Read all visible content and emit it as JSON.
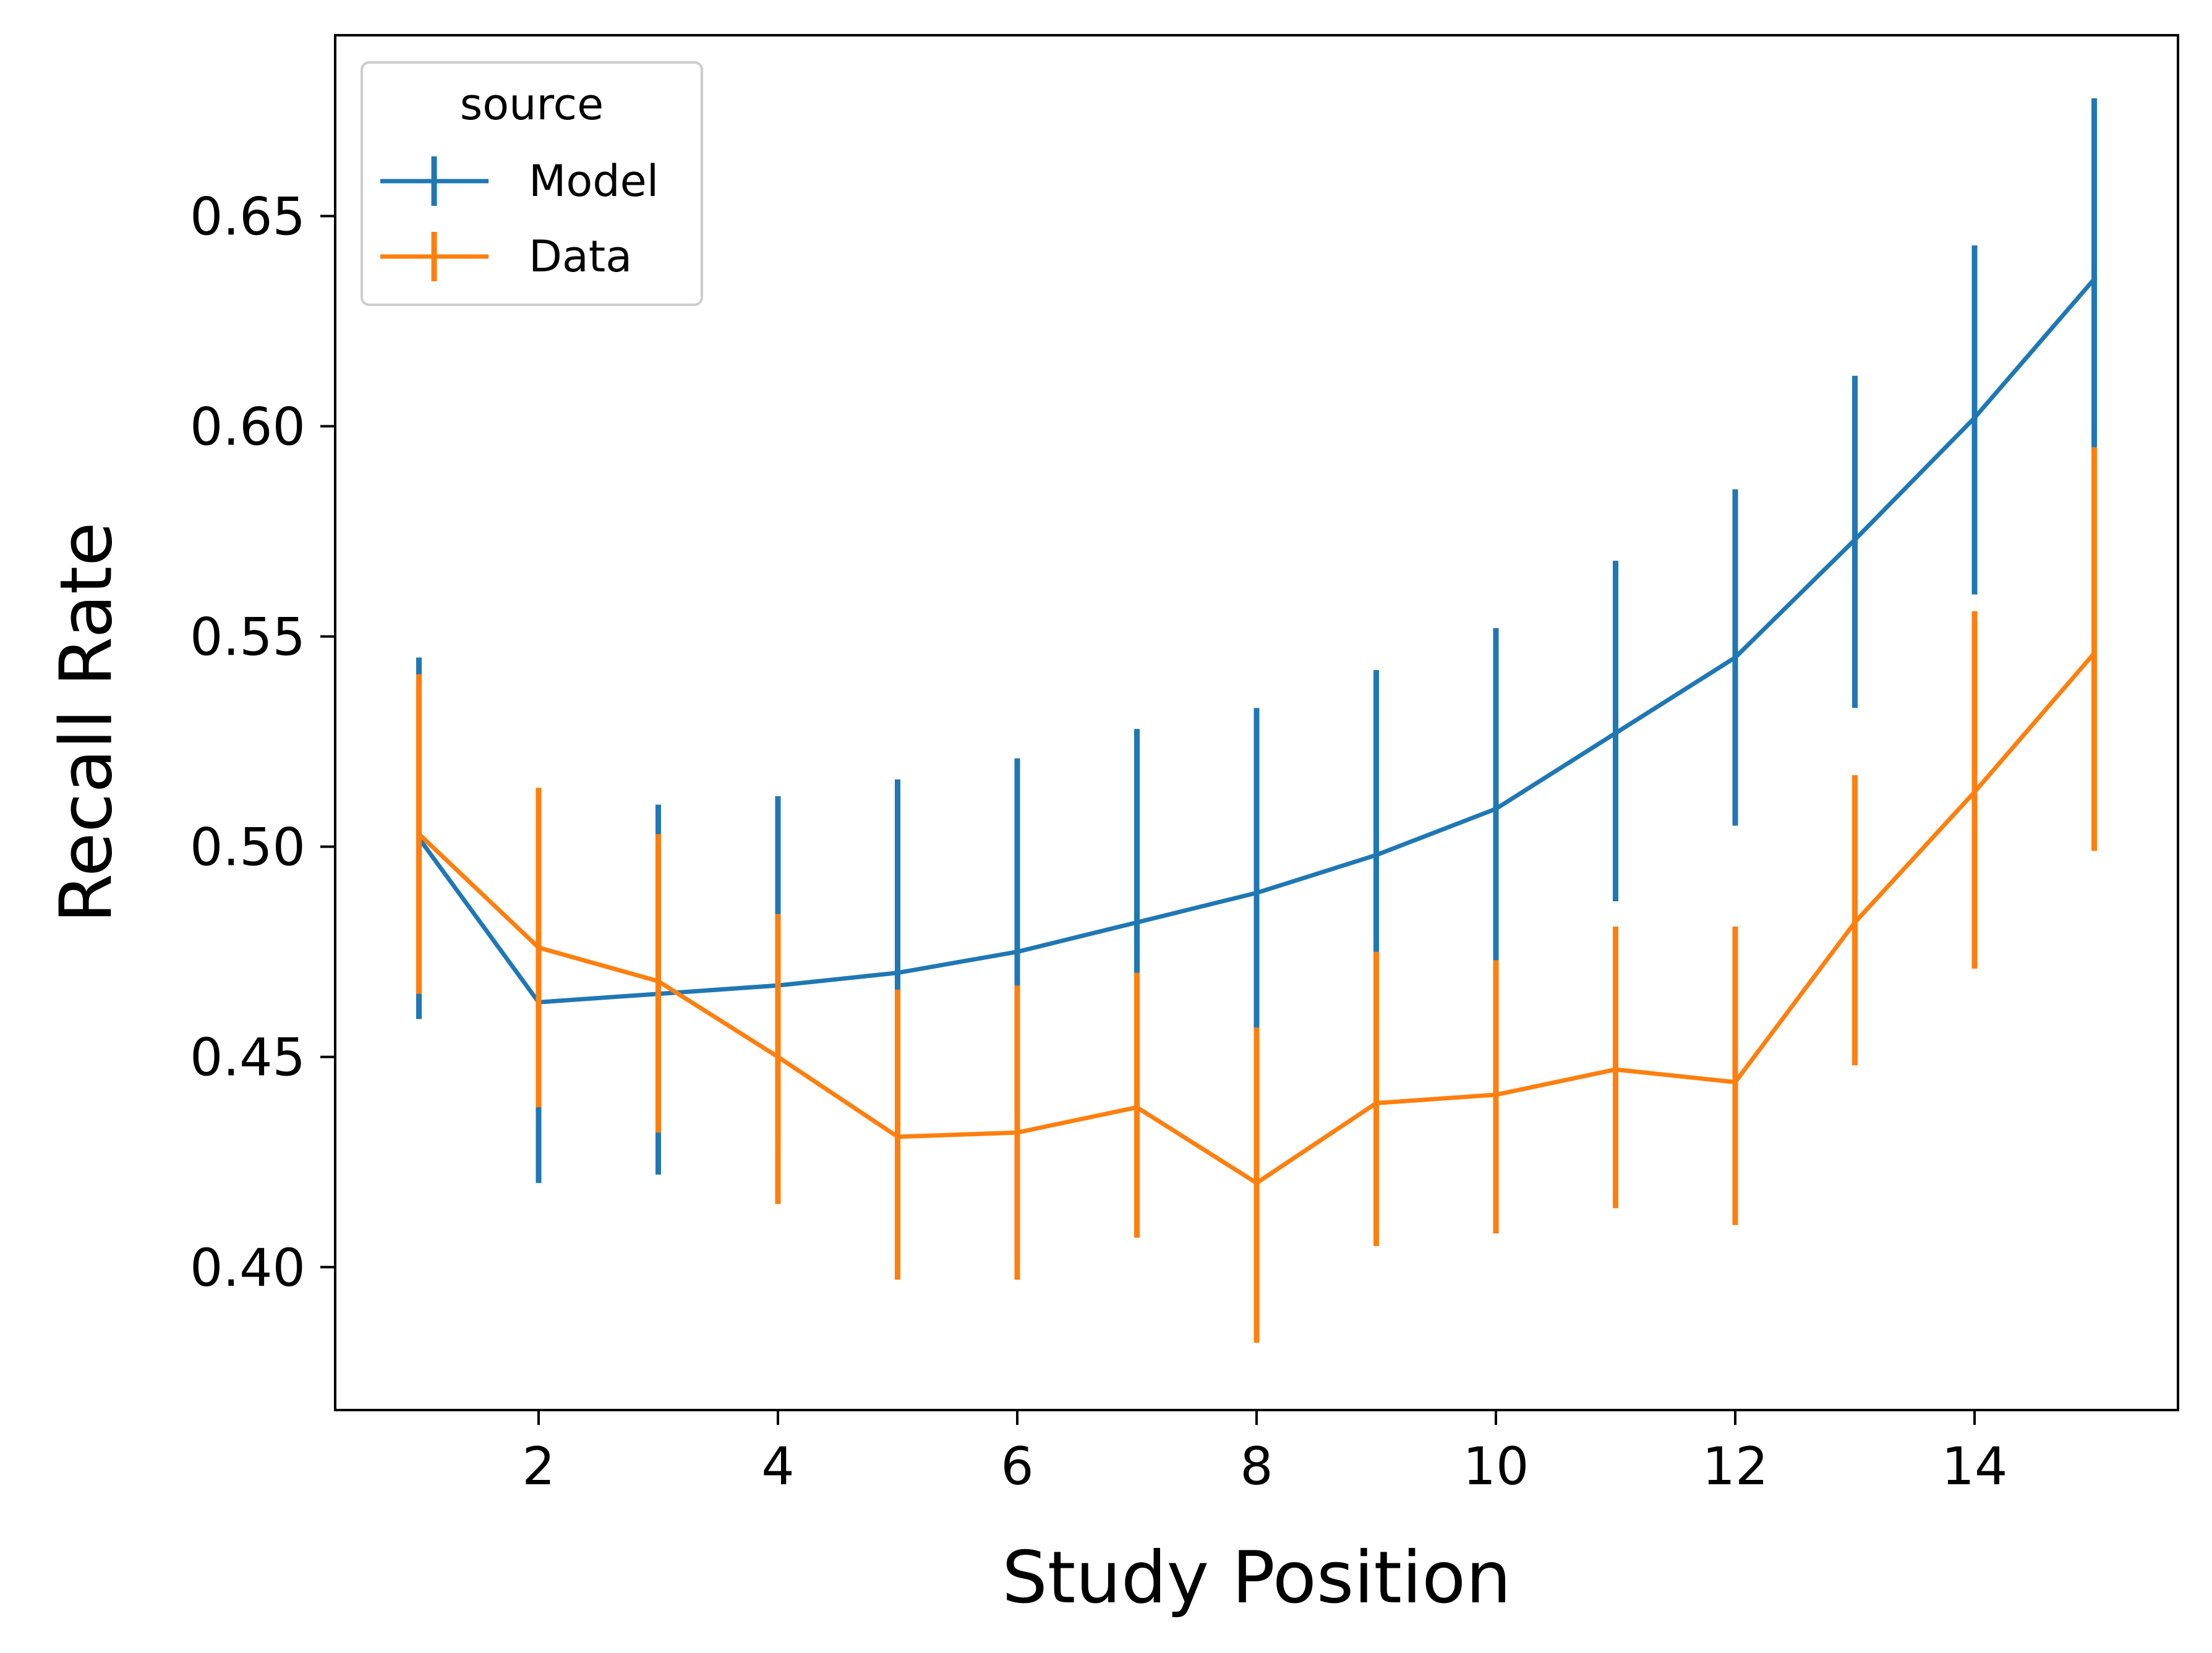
{
  "chart_data": {
    "type": "line",
    "xlabel": "Study Position",
    "ylabel": "Recall Rate",
    "legend_title": "source",
    "legend_placement": "top-left",
    "grid": false,
    "xlim": [
      0.3,
      15.7
    ],
    "ylim": [
      0.366,
      0.693
    ],
    "xticks": [
      2,
      4,
      6,
      8,
      10,
      12,
      14
    ],
    "yticks": [
      0.4,
      0.45,
      0.5,
      0.55,
      0.6,
      0.65
    ],
    "x": [
      1,
      2,
      3,
      4,
      5,
      6,
      7,
      8,
      9,
      10,
      11,
      12,
      13,
      14,
      15
    ],
    "series": [
      {
        "name": "Model",
        "color": "#1f77b4",
        "values": [
          0.502,
          0.463,
          0.465,
          0.467,
          0.47,
          0.475,
          0.482,
          0.489,
          0.498,
          0.509,
          0.527,
          0.545,
          0.573,
          0.602,
          0.635
        ],
        "lower": [
          0.459,
          0.42,
          0.422,
          0.429,
          0.432,
          0.436,
          0.443,
          0.451,
          0.46,
          0.471,
          0.487,
          0.505,
          0.533,
          0.56,
          0.594
        ],
        "upper": [
          0.545,
          0.506,
          0.51,
          0.512,
          0.516,
          0.521,
          0.528,
          0.533,
          0.542,
          0.552,
          0.568,
          0.585,
          0.612,
          0.643,
          0.678
        ]
      },
      {
        "name": "Data",
        "color": "#ff7f0e",
        "values": [
          0.503,
          0.476,
          0.468,
          0.45,
          0.431,
          0.432,
          0.438,
          0.42,
          0.439,
          0.441,
          0.447,
          0.444,
          0.482,
          0.513,
          0.546
        ],
        "lower": [
          0.465,
          0.438,
          0.432,
          0.415,
          0.397,
          0.397,
          0.407,
          0.382,
          0.405,
          0.408,
          0.414,
          0.41,
          0.448,
          0.471,
          0.499
        ],
        "upper": [
          0.541,
          0.514,
          0.503,
          0.484,
          0.466,
          0.467,
          0.47,
          0.457,
          0.475,
          0.473,
          0.481,
          0.481,
          0.517,
          0.556,
          0.595
        ]
      }
    ]
  }
}
